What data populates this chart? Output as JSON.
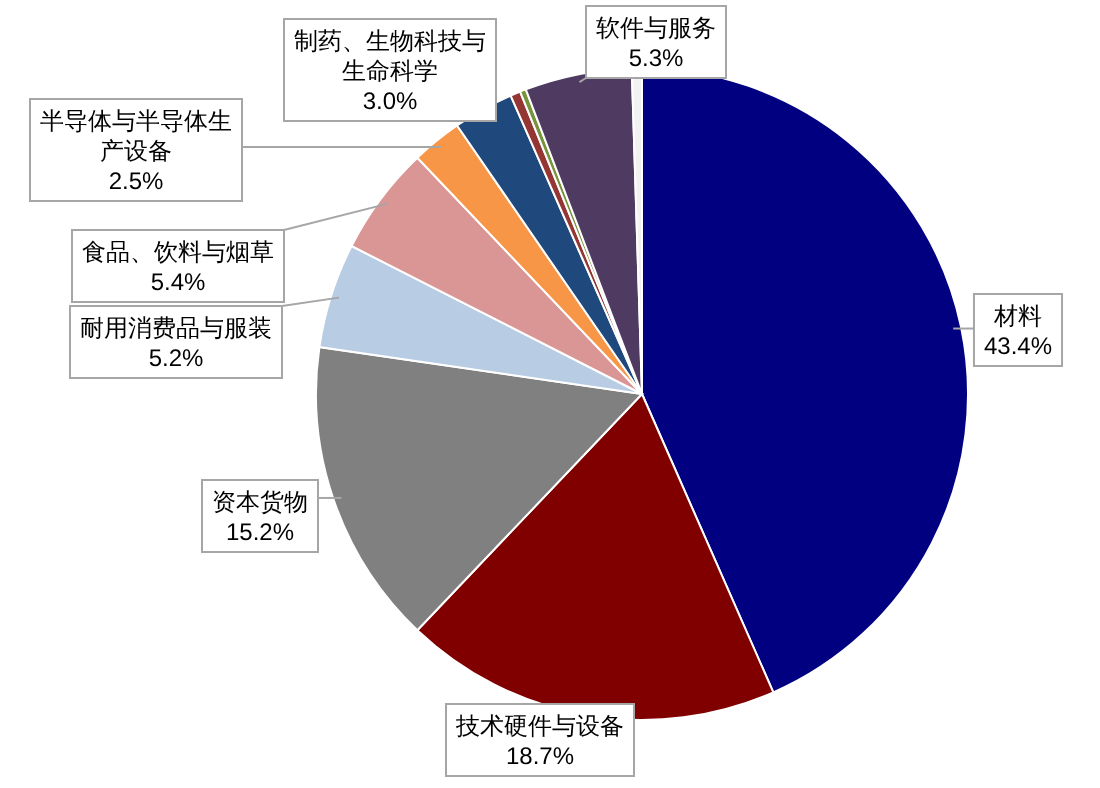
{
  "chart_data": {
    "type": "pie",
    "categories": [
      "材料",
      "技术硬件与设备",
      "资本货物",
      "耐用消费品与服装",
      "食品、饮料与烟草",
      "半导体与半导体生产设备",
      "制药、生物科技与生命科学",
      null,
      null,
      "软件与服务",
      null
    ],
    "values": [
      43.4,
      18.7,
      15.2,
      5.2,
      5.4,
      2.5,
      3.0,
      0.5,
      0.3,
      5.3,
      0.5
    ],
    "colors": [
      "#000080",
      "#800000",
      "#808080",
      "#b8cce4",
      "#da9694",
      "#f79646",
      "#1f497d",
      "#943634",
      "#77933c",
      "#4f3b62",
      "#f2f2f2"
    ],
    "value_labels": [
      "43.4%",
      "18.7%",
      "15.2%",
      "5.2%",
      "5.4%",
      "2.5%",
      "3.0%",
      null,
      null,
      "5.3%",
      null
    ]
  }
}
